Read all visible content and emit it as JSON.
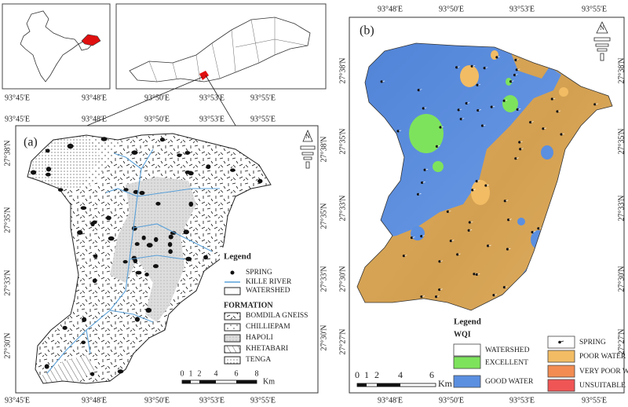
{
  "panel_a": {
    "label": "(a)",
    "north": "N",
    "lon_labels": [
      "93°45'E",
      "93°48'E",
      "93°50'E",
      "93°53'E",
      "93°55'E"
    ],
    "lat_labels": [
      "27°38'N",
      "27°35'N",
      "27°33'N",
      "27°30'N"
    ],
    "legend": {
      "title": "Legend",
      "items": [
        "SPRING",
        "KILLE RIVER",
        "WATERSHED"
      ],
      "formation_title": "FORMATION",
      "formations": [
        "BOMDILA GNEISS",
        "CHILLIEPAM",
        "HAPOLI",
        "KHETABARI",
        "TENGA"
      ]
    },
    "scale": {
      "ticks": [
        0,
        1,
        2,
        4,
        6,
        8
      ],
      "unit": "Km"
    }
  },
  "panel_b": {
    "label": "(b)",
    "north": "N",
    "lon_labels": [
      "93°48'E",
      "93°50'E",
      "93°53'E",
      "93°55'E"
    ],
    "lat_labels": [
      "27°38'N",
      "27°35'N",
      "27°33'N",
      "27°30'N",
      "27°27'N"
    ],
    "legend": {
      "title": "Legend",
      "subtitle": "WQI",
      "items": [
        {
          "label": "WATERSHED",
          "color": "#ffffff"
        },
        {
          "label": "EXCELLENT",
          "color": "#7ee35c"
        },
        {
          "label": "GOOD WATER",
          "color": "#5b8fe0"
        },
        {
          "label": "SPRING",
          "color": "#ffffff"
        },
        {
          "label": "POOR WATER",
          "color": "#f2bc64"
        },
        {
          "label": "VERY POOR WATER",
          "color": "#f28c52"
        },
        {
          "label": "UNSUITABLE",
          "color": "#f05555"
        }
      ]
    },
    "scale": {
      "ticks": [
        0,
        1,
        2,
        4,
        6
      ],
      "unit": "Km"
    }
  }
}
